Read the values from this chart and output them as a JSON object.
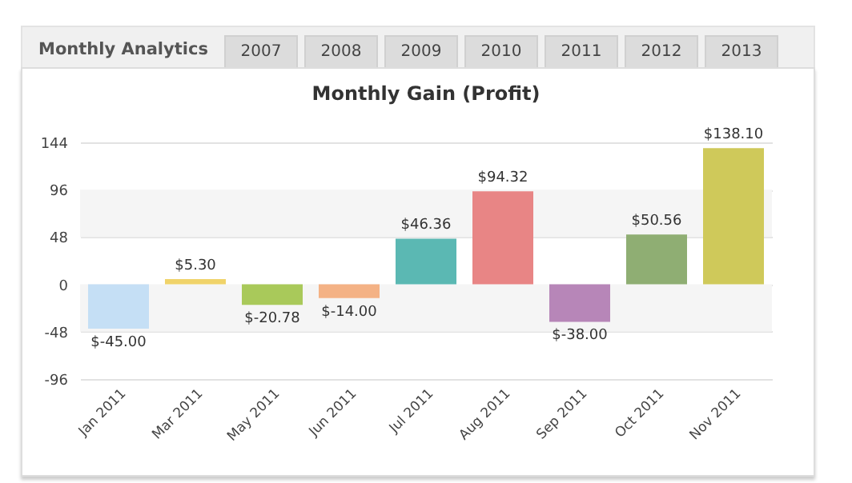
{
  "chart_data": {
    "type": "bar",
    "title": "Monthly Gain (Profit)",
    "annotations": [
      "Monthly Analytics",
      "2007",
      "2008",
      "2009",
      "2010",
      "2011",
      "2012",
      "2013"
    ],
    "categories": [
      "Jan 2011",
      "Mar 2011",
      "May 2011",
      "Jun 2011",
      "Jul 2011",
      "Aug 2011",
      "Sep 2011",
      "Oct 2011",
      "Nov 2011"
    ],
    "values": [
      -45.0,
      5.3,
      -20.78,
      -14.0,
      46.36,
      94.32,
      -38.0,
      50.56,
      138.1
    ],
    "value_labels": [
      "$-45.00",
      "$5.30",
      "$-20.78",
      "$-14.00",
      "$46.36",
      "$94.32",
      "$-38.00",
      "$50.56",
      "$138.10"
    ],
    "colors": [
      "#c5dff5",
      "#f0d36a",
      "#a9c95a",
      "#f4b285",
      "#5bb8b3",
      "#e88585",
      "#b786b8",
      "#8fae73",
      "#cfc95a"
    ],
    "ylim": [
      -96,
      144
    ],
    "yticks": [
      -96,
      -48,
      0,
      48,
      96,
      144
    ],
    "bands": [
      {
        "axis": "y",
        "from": -48,
        "to": 0,
        "color": "#f5f5f5"
      },
      {
        "axis": "y",
        "from": 48,
        "to": 96,
        "color": "#f5f5f5"
      }
    ],
    "grid": "y"
  }
}
